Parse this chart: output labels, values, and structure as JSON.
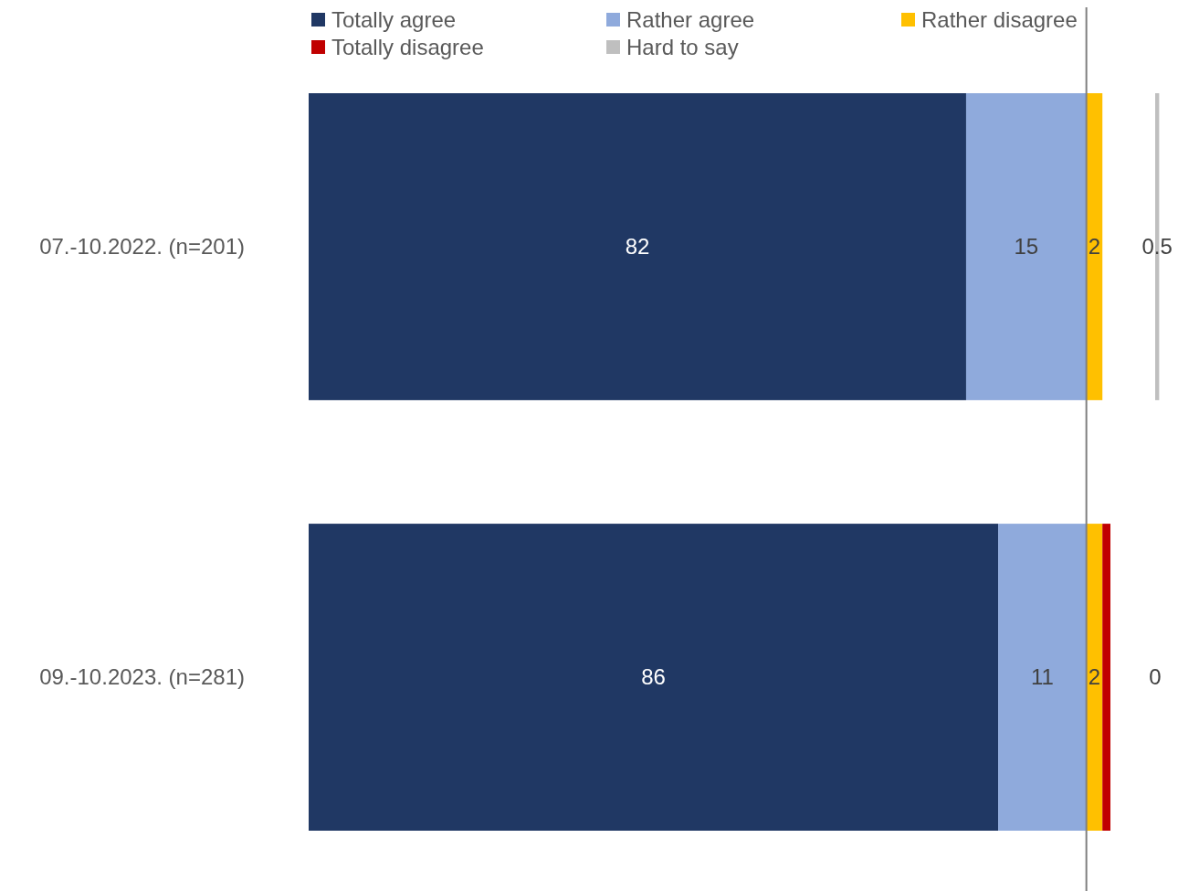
{
  "chart_data": [
    {
      "type": "bar",
      "orientation": "horizontal",
      "stacked": true,
      "categories": [
        "07.-10.2022. (n=201)",
        "09.-10.2023. (n=281)"
      ],
      "series": [
        {
          "name": "Totally agree",
          "color": "#203864",
          "values": [
            82,
            86
          ]
        },
        {
          "name": "Rather agree",
          "color": "#8faadc",
          "values": [
            15,
            11
          ]
        },
        {
          "name": "Rather disagree",
          "color": "#ffc000",
          "values": [
            2,
            2
          ]
        },
        {
          "name": "Totally disagree",
          "color": "#c00000",
          "values": [
            0,
            1
          ],
          "value_labels": [
            null,
            null
          ]
        }
      ],
      "tick_labels": "y",
      "data_labels": true,
      "legend": "top",
      "ref_lines": [
        {
          "axis": "x",
          "value": 97,
          "color": "#808080"
        }
      ]
    },
    {
      "type": "bar",
      "orientation": "horizontal",
      "categories": [
        null,
        null
      ],
      "series": [
        {
          "name": "Hard to say",
          "color": "#bfbfbf",
          "values": [
            0.5,
            0
          ]
        }
      ],
      "tick_labels": false,
      "data_labels": true
    }
  ]
}
